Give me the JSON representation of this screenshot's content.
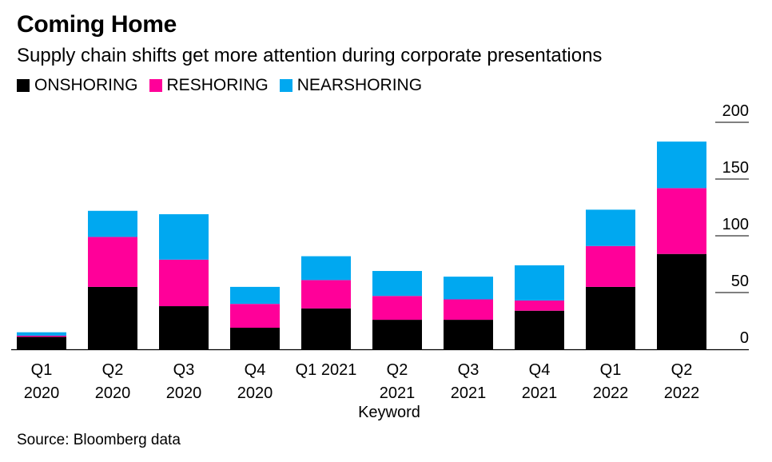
{
  "header": {
    "title": "Coming Home",
    "subtitle": "Supply chain shifts get more attention during corporate presentations"
  },
  "source": "Source: Bloomberg data",
  "colors": {
    "onshoring": "#000000",
    "reshoring": "#ff0099",
    "nearshoring": "#00a8f0",
    "grid": "#000000"
  },
  "chart_data": {
    "type": "bar",
    "stacked": true,
    "title": "Coming Home",
    "subtitle": "Supply chain shifts get more attention during corporate presentations",
    "xlabel": "Keyword",
    "ylabel": "",
    "ylim": [
      0,
      200
    ],
    "yticks": [
      0,
      50,
      100,
      150,
      200
    ],
    "y_axis_side": "right",
    "legend_placement": "top-left",
    "categories": [
      [
        "Q1",
        "2020"
      ],
      [
        "Q2",
        "2020"
      ],
      [
        "Q3",
        "2020"
      ],
      [
        "Q4",
        "2020"
      ],
      [
        "Q1 2021"
      ],
      [
        "Q2",
        "2021"
      ],
      [
        "Q3",
        "2021"
      ],
      [
        "Q4",
        "2021"
      ],
      [
        "Q1",
        "2022"
      ],
      [
        "Q2",
        "2022"
      ]
    ],
    "series": [
      {
        "name": "ONSHORING",
        "color": "#000000",
        "values": [
          11,
          55,
          38,
          19,
          36,
          26,
          26,
          34,
          55,
          84
        ]
      },
      {
        "name": "RESHORING",
        "color": "#ff0099",
        "values": [
          1,
          44,
          41,
          21,
          25,
          21,
          18,
          9,
          36,
          58
        ]
      },
      {
        "name": "NEARSHORING",
        "color": "#00a8f0",
        "values": [
          3,
          23,
          40,
          15,
          21,
          22,
          20,
          31,
          32,
          41
        ]
      }
    ]
  }
}
